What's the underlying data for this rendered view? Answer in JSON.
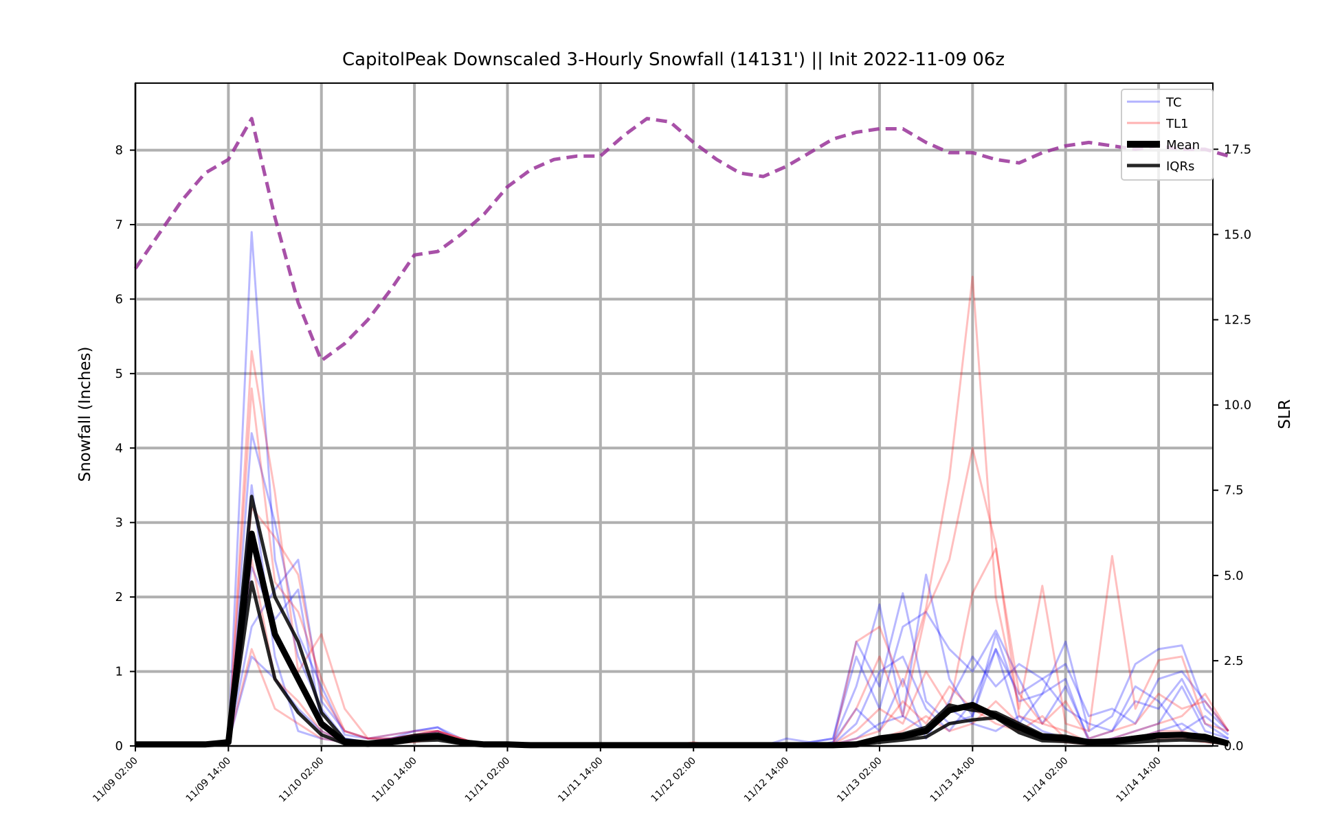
{
  "chart_data": {
    "type": "line",
    "title": "CapitolPeak Downscaled 3-Hourly Snowfall (14131') || Init 2022-11-09 06z",
    "ylabel": "Snowfall (Inches)",
    "ylabel_right": "SLR",
    "ylim": [
      0,
      8.9
    ],
    "ylim_right": [
      0,
      19.44
    ],
    "y_ticks": [
      "0",
      "1",
      "2",
      "3",
      "4",
      "5",
      "6",
      "7",
      "8"
    ],
    "y_ticks_right": [
      "0.0",
      "2.5",
      "5.0",
      "7.5",
      "10.0",
      "12.5",
      "15.0",
      "17.5"
    ],
    "x_tick_labels": [
      "11/09 02:00",
      "11/09 14:00",
      "11/10 02:00",
      "11/10 14:00",
      "11/11 02:00",
      "11/11 14:00",
      "11/12 02:00",
      "11/12 14:00",
      "11/13 02:00",
      "11/13 14:00",
      "11/14 02:00",
      "11/14 14:00"
    ],
    "x_hours_start": "11/09 02:00",
    "x_step_hours": 3,
    "x_last_hours": 141,
    "grid": true,
    "legend_position": "upper right",
    "legend": [
      {
        "label": "TC",
        "color": "#0000ff",
        "style": "thin"
      },
      {
        "label": "TL1",
        "color": "#ff0000",
        "style": "thin"
      },
      {
        "label": "Mean",
        "color": "#000000",
        "style": "thick"
      },
      {
        "label": "IQRs",
        "color": "#000000",
        "style": "medium"
      }
    ],
    "x": [
      2,
      5,
      8,
      11,
      14,
      17,
      20,
      23,
      26,
      29,
      32,
      35,
      38,
      41,
      44,
      47,
      50,
      53,
      56,
      59,
      62,
      65,
      68,
      71,
      74,
      77,
      80,
      83,
      86,
      89,
      92,
      95,
      98,
      101,
      104,
      107,
      110,
      113,
      116,
      119,
      122,
      125,
      128,
      131,
      134,
      137,
      140,
      143
    ],
    "mean": [
      0.02,
      0.02,
      0.02,
      0.02,
      0.05,
      2.85,
      1.5,
      0.9,
      0.3,
      0.05,
      0.03,
      0.05,
      0.1,
      0.13,
      0.05,
      0.02,
      0.02,
      0.01,
      0.01,
      0.01,
      0.01,
      0.01,
      0.01,
      0.01,
      0.01,
      0.01,
      0.01,
      0.01,
      0.01,
      0.01,
      0.01,
      0.02,
      0.1,
      0.13,
      0.2,
      0.48,
      0.55,
      0.4,
      0.25,
      0.12,
      0.1,
      0.05,
      0.06,
      0.1,
      0.14,
      0.15,
      0.12,
      0.03
    ],
    "iqr_low": [
      0.01,
      0.01,
      0.01,
      0.01,
      0.03,
      2.2,
      0.9,
      0.45,
      0.15,
      0.03,
      0.02,
      0.03,
      0.07,
      0.08,
      0.03,
      0.01,
      0.01,
      0.01,
      0.01,
      0.01,
      0.01,
      0.01,
      0.01,
      0.01,
      0.01,
      0.01,
      0.01,
      0.01,
      0.01,
      0.01,
      0.01,
      0.01,
      0.05,
      0.08,
      0.12,
      0.3,
      0.35,
      0.38,
      0.18,
      0.07,
      0.06,
      0.03,
      0.03,
      0.05,
      0.07,
      0.08,
      0.07,
      0.02
    ],
    "iqr_high": [
      0.02,
      0.02,
      0.02,
      0.02,
      0.07,
      3.35,
      2.0,
      1.4,
      0.45,
      0.08,
      0.05,
      0.08,
      0.14,
      0.16,
      0.07,
      0.03,
      0.02,
      0.02,
      0.02,
      0.02,
      0.02,
      0.02,
      0.02,
      0.02,
      0.02,
      0.02,
      0.02,
      0.02,
      0.02,
      0.02,
      0.02,
      0.03,
      0.12,
      0.16,
      0.25,
      0.55,
      0.48,
      0.45,
      0.3,
      0.15,
      0.13,
      0.07,
      0.08,
      0.12,
      0.16,
      0.16,
      0.14,
      0.05
    ],
    "slr": [
      14.0,
      15.0,
      16.0,
      16.8,
      17.2,
      18.4,
      15.5,
      13.0,
      11.3,
      11.8,
      12.5,
      13.4,
      14.4,
      14.5,
      15.0,
      15.6,
      16.4,
      16.9,
      17.2,
      17.3,
      17.3,
      17.9,
      18.4,
      18.3,
      17.7,
      17.2,
      16.8,
      16.7,
      17.0,
      17.4,
      17.8,
      18.0,
      18.1,
      18.1,
      17.7,
      17.4,
      17.4,
      17.2,
      17.1,
      17.4,
      17.6,
      17.7,
      17.6,
      17.5,
      17.6,
      17.5,
      17.5,
      17.3
    ],
    "tc_members": [
      [
        0,
        0,
        0,
        0,
        0.05,
        6.9,
        2.5,
        1.2,
        0.5,
        0.1,
        0.05,
        0.1,
        0.15,
        0.2,
        0.05,
        0,
        0,
        0,
        0,
        0,
        0,
        0,
        0,
        0,
        0,
        0,
        0,
        0,
        0.1,
        0.05,
        0.1,
        1.4,
        0.8,
        2.05,
        0.6,
        0.3,
        0.4,
        1.3,
        0.7,
        0.9,
        1.1,
        0.4,
        0.5,
        0.3,
        0.9,
        1.0,
        0.6,
        0.2
      ],
      [
        0,
        0,
        0,
        0,
        0.05,
        4.2,
        3.0,
        1.5,
        0.8,
        0.15,
        0.1,
        0.1,
        0.2,
        0.25,
        0.05,
        0,
        0,
        0,
        0,
        0,
        0,
        0,
        0,
        0,
        0,
        0,
        0,
        0,
        0,
        0,
        0.05,
        0.8,
        1.9,
        0.4,
        2.3,
        0.9,
        0.4,
        1.5,
        0.6,
        0.7,
        1.4,
        0.2,
        0.4,
        1.1,
        1.3,
        1.35,
        0.5,
        0.2
      ],
      [
        0,
        0,
        0,
        0,
        0.05,
        1.6,
        2.1,
        2.5,
        0.6,
        0.2,
        0.1,
        0.15,
        0.2,
        0.25,
        0.1,
        0,
        0,
        0,
        0,
        0,
        0,
        0,
        0,
        0,
        0,
        0,
        0,
        0,
        0,
        0.05,
        0.1,
        1.2,
        0.5,
        1.6,
        1.8,
        1.3,
        1.0,
        1.55,
        0.9,
        0.3,
        0.8,
        0.1,
        0.2,
        0.8,
        0.6,
        0.2,
        0.4,
        0.15
      ],
      [
        0,
        0,
        0,
        0,
        0.05,
        3.5,
        1.2,
        0.2,
        0.1,
        0.05,
        0.05,
        0.1,
        0.1,
        0.15,
        0.05,
        0,
        0,
        0,
        0,
        0,
        0,
        0,
        0,
        0,
        0,
        0,
        0,
        0,
        0,
        0,
        0.05,
        0.5,
        0.2,
        0.9,
        0.1,
        0.6,
        1.2,
        0.8,
        1.1,
        0.9,
        0.5,
        0.3,
        0.2,
        0.6,
        0.5,
        0.9,
        0.3,
        0.1
      ],
      [
        0,
        0,
        0,
        0,
        0.05,
        2.4,
        1.7,
        2.1,
        0.3,
        0.1,
        0.05,
        0.05,
        0.1,
        0.2,
        0.05,
        0,
        0,
        0,
        0,
        0,
        0,
        0,
        0,
        0,
        0,
        0,
        0,
        0,
        0,
        0,
        0.02,
        0.3,
        1.0,
        1.2,
        0.5,
        0.2,
        0.6,
        1.3,
        0.3,
        0.7,
        0.9,
        0.05,
        0.1,
        0.2,
        0.3,
        0.8,
        0.2,
        0.1
      ],
      [
        0,
        0,
        0,
        0,
        0.05,
        1.2,
        0.9,
        0.5,
        0.2,
        0.05,
        0.05,
        0.05,
        0.1,
        0.1,
        0.05,
        0,
        0,
        0,
        0,
        0,
        0,
        0,
        0,
        0,
        0,
        0,
        0,
        0,
        0,
        0,
        0.02,
        0.1,
        0.3,
        0.4,
        0.2,
        0.5,
        0.3,
        0.2,
        0.4,
        0.2,
        0.1,
        0.02,
        0.1,
        0.1,
        0.2,
        0.3,
        0.1,
        0.05
      ]
    ],
    "tl1_members": [
      [
        0,
        0,
        0,
        0,
        0.05,
        5.3,
        3.4,
        1.0,
        1.5,
        0.5,
        0.1,
        0.1,
        0.15,
        0.2,
        0.1,
        0,
        0,
        0,
        0,
        0,
        0,
        0,
        0,
        0,
        0.05,
        0,
        0,
        0,
        0,
        0,
        0.02,
        1.4,
        1.6,
        0.8,
        1.85,
        3.6,
        6.3,
        2.0,
        0.5,
        2.15,
        0.3,
        0.2,
        2.55,
        0.5,
        1.15,
        1.2,
        0.3,
        0.2
      ],
      [
        0,
        0,
        0,
        0,
        0.05,
        4.8,
        2.2,
        1.8,
        0.9,
        0.2,
        0.1,
        0.15,
        0.2,
        0.2,
        0.1,
        0,
        0,
        0,
        0,
        0,
        0,
        0,
        0,
        0,
        0,
        0,
        0,
        0,
        0,
        0,
        0.02,
        0.5,
        1.2,
        0.4,
        1.8,
        2.5,
        4.0,
        2.7,
        0.4,
        0.3,
        0.6,
        0.1,
        0.2,
        0.3,
        0.7,
        0.5,
        0.6,
        0.2
      ],
      [
        0,
        0,
        0,
        0,
        0.05,
        3.2,
        2.8,
        2.3,
        0.7,
        0.2,
        0.1,
        0.1,
        0.15,
        0.2,
        0.1,
        0,
        0,
        0,
        0,
        0,
        0,
        0,
        0,
        0,
        0,
        0,
        0,
        0,
        0,
        0,
        0.02,
        0.2,
        0.5,
        0.3,
        1.0,
        0.5,
        2.05,
        2.65,
        0.7,
        0.3,
        0.2,
        0.05,
        0.1,
        0.2,
        0.3,
        0.4,
        0.7,
        0.2
      ],
      [
        0,
        0,
        0,
        0,
        0.05,
        2.5,
        0.9,
        0.6,
        0.2,
        0.05,
        0.05,
        0.05,
        0.1,
        0.15,
        0.05,
        0,
        0,
        0,
        0,
        0,
        0,
        0,
        0,
        0,
        0,
        0,
        0,
        0,
        0,
        0,
        0.02,
        0.1,
        0.2,
        0.6,
        0.3,
        0.8,
        0.5,
        0.3,
        0.2,
        0.4,
        0.1,
        0.02,
        0.05,
        0.1,
        0.2,
        0.2,
        0.1,
        0.05
      ],
      [
        0,
        0,
        0,
        0,
        0.05,
        1.3,
        0.5,
        0.3,
        0.1,
        0.05,
        0.05,
        0.05,
        0.05,
        0.1,
        0.05,
        0,
        0,
        0,
        0,
        0,
        0,
        0,
        0,
        0,
        0,
        0,
        0,
        0,
        0,
        0,
        0.02,
        0.05,
        0.1,
        0.2,
        0.4,
        0.2,
        0.3,
        0.6,
        0.3,
        0.1,
        0.05,
        0.02,
        0.05,
        0.1,
        0.1,
        0.1,
        0.05,
        0.02
      ]
    ]
  }
}
